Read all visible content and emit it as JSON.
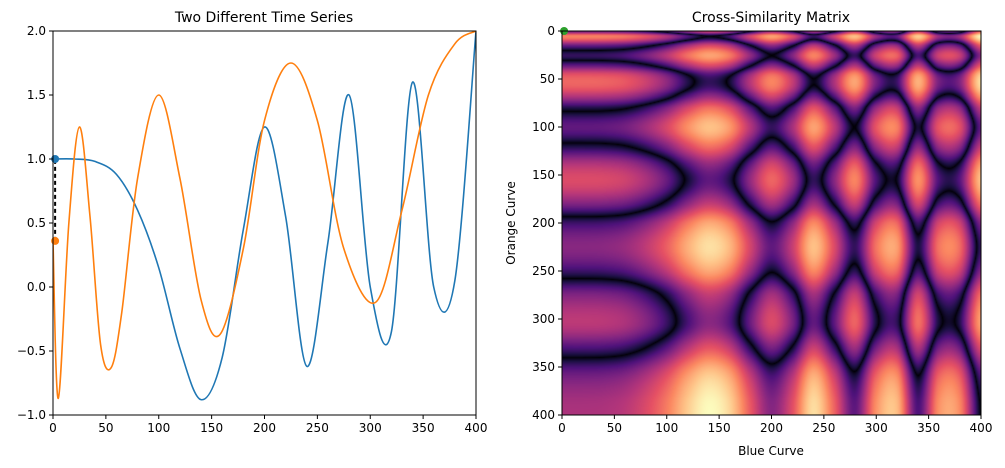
{
  "chart_data": [
    {
      "type": "line",
      "title": "Two Different Time Series",
      "xlabel": "",
      "ylabel": "",
      "xlim": [
        0,
        400
      ],
      "ylim": [
        -1.0,
        2.0
      ],
      "xticks": [
        "0",
        "50",
        "100",
        "150",
        "200",
        "250",
        "300",
        "350",
        "400"
      ],
      "yticks": [
        "-1.0",
        "-0.5",
        "0.0",
        "0.5",
        "1.0",
        "1.5",
        "2.0"
      ],
      "grid": false,
      "colors": {
        "blue": "#1f77b4",
        "orange": "#ff7f0e"
      },
      "series": [
        {
          "color": "#1f77b4",
          "x": [
            0,
            20,
            40,
            60,
            80,
            100,
            120,
            140,
            160,
            180,
            200,
            220,
            240,
            260,
            280,
            300,
            320,
            340,
            360,
            380,
            400
          ],
          "values": [
            1.0,
            1.0,
            0.98,
            0.88,
            0.6,
            0.15,
            -0.48,
            -0.88,
            -0.55,
            0.45,
            1.25,
            0.55,
            -0.62,
            0.35,
            1.5,
            0.0,
            -0.35,
            1.6,
            0.0,
            0.05,
            2.0
          ]
        },
        {
          "color": "#ff7f0e",
          "x": [
            0,
            5,
            15,
            25,
            35,
            45,
            55,
            65,
            80,
            100,
            120,
            140,
            158,
            180,
            200,
            225,
            250,
            275,
            305,
            330,
            355,
            380,
            400
          ],
          "values": [
            0.36,
            -0.87,
            0.5,
            1.25,
            0.55,
            -0.45,
            -0.63,
            -0.2,
            0.85,
            1.5,
            0.85,
            -0.1,
            -0.37,
            0.3,
            1.3,
            1.75,
            1.3,
            0.3,
            -0.12,
            0.6,
            1.5,
            1.9,
            2.0
          ]
        }
      ],
      "markers": [
        {
          "x": 2,
          "y": 1.0,
          "color": "#1f77b4"
        },
        {
          "x": 2,
          "y": 0.36,
          "color": "#ff7f0e"
        }
      ],
      "connector": {
        "x": 2,
        "y_from": 0.36,
        "y_to": 1.0,
        "style": "dashed",
        "color": "#000000"
      }
    },
    {
      "type": "heatmap",
      "title": "Cross-Similarity Matrix",
      "xlabel": "Blue Curve",
      "ylabel": "Orange Curve",
      "xlim": [
        0,
        400
      ],
      "ylim": [
        400,
        0
      ],
      "xticks": [
        "0",
        "50",
        "100",
        "150",
        "200",
        "250",
        "300",
        "350",
        "400"
      ],
      "yticks": [
        "0",
        "50",
        "100",
        "150",
        "200",
        "250",
        "300",
        "350",
        "400"
      ],
      "colormap": "magma",
      "marker": {
        "x": 2,
        "y": 0,
        "color": "#2ca02c"
      }
    }
  ]
}
